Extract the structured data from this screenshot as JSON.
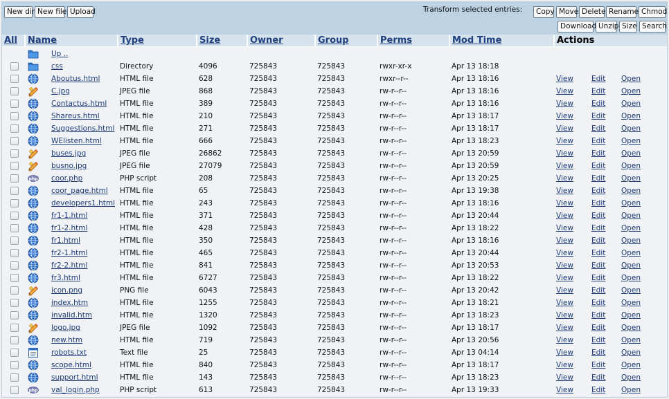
{
  "toolbar": {
    "buttons_left": [
      "New dir",
      "New file",
      "Upload"
    ],
    "transform_label": "Transform selected entries:",
    "buttons_right_row1": [
      "Copy",
      "Move",
      "Delete",
      "Rename",
      "Chmod"
    ],
    "buttons_right_row2": [
      "Download",
      "Unzip",
      "Size",
      "Search"
    ]
  },
  "columns": {
    "all": "All",
    "name": "Name",
    "type": "Type",
    "size": "Size",
    "owner": "Owner",
    "group": "Group",
    "perms": "Perms",
    "mtime": "Mod Time",
    "actions": "Actions"
  },
  "up_link": "Up ..",
  "action_labels": {
    "view": "View",
    "edit": "Edit",
    "open": "Open"
  },
  "rows": [
    {
      "name": "css",
      "type": "Directory",
      "size": "4096",
      "owner": "725843",
      "group": "725843",
      "perms": "rwxr-xr-x",
      "mtime": "Apr 13 18:18",
      "icon": "folder-icon",
      "actions": false
    },
    {
      "name": "Aboutus.html",
      "type": "HTML file",
      "size": "628",
      "owner": "725843",
      "group": "725843",
      "perms": "rwxr--r--",
      "mtime": "Apr 13 18:16",
      "icon": "html-file-icon",
      "actions": true
    },
    {
      "name": "C.jpg",
      "type": "JPEG file",
      "size": "868",
      "owner": "725843",
      "group": "725843",
      "perms": "rw-r--r--",
      "mtime": "Apr 13 18:16",
      "icon": "image-file-icon",
      "actions": true
    },
    {
      "name": "Contactus.html",
      "type": "HTML file",
      "size": "389",
      "owner": "725843",
      "group": "725843",
      "perms": "rw-r--r--",
      "mtime": "Apr 13 18:16",
      "icon": "html-file-icon",
      "actions": true
    },
    {
      "name": "Shareus.html",
      "type": "HTML file",
      "size": "210",
      "owner": "725843",
      "group": "725843",
      "perms": "rw-r--r--",
      "mtime": "Apr 13 18:17",
      "icon": "html-file-icon",
      "actions": true
    },
    {
      "name": "Suggestions.html",
      "type": "HTML file",
      "size": "271",
      "owner": "725843",
      "group": "725843",
      "perms": "rw-r--r--",
      "mtime": "Apr 13 18:17",
      "icon": "html-file-icon",
      "actions": true
    },
    {
      "name": "WElisten.html",
      "type": "HTML file",
      "size": "666",
      "owner": "725843",
      "group": "725843",
      "perms": "rw-r--r--",
      "mtime": "Apr 13 18:23",
      "icon": "html-file-icon",
      "actions": true
    },
    {
      "name": "buses.jpg",
      "type": "JPEG file",
      "size": "26862",
      "owner": "725843",
      "group": "725843",
      "perms": "rw-r--r--",
      "mtime": "Apr 13 20:59",
      "icon": "image-file-icon",
      "actions": true
    },
    {
      "name": "busno.jpg",
      "type": "JPEG file",
      "size": "27079",
      "owner": "725843",
      "group": "725843",
      "perms": "rw-r--r--",
      "mtime": "Apr 13 20:59",
      "icon": "image-file-icon",
      "actions": true
    },
    {
      "name": "coor.php",
      "type": "PHP script",
      "size": "208",
      "owner": "725843",
      "group": "725843",
      "perms": "rw-r--r--",
      "mtime": "Apr 13 20:25",
      "icon": "php-file-icon",
      "actions": true
    },
    {
      "name": "coor_page.html",
      "type": "HTML file",
      "size": "65",
      "owner": "725843",
      "group": "725843",
      "perms": "rw-r--r--",
      "mtime": "Apr 13 19:38",
      "icon": "html-file-icon",
      "actions": true
    },
    {
      "name": "developers1.html",
      "type": "HTML file",
      "size": "243",
      "owner": "725843",
      "group": "725843",
      "perms": "rw-r--r--",
      "mtime": "Apr 13 18:16",
      "icon": "html-file-icon",
      "actions": true
    },
    {
      "name": "fr1-1.html",
      "type": "HTML file",
      "size": "371",
      "owner": "725843",
      "group": "725843",
      "perms": "rw-r--r--",
      "mtime": "Apr 13 20:44",
      "icon": "html-file-icon",
      "actions": true
    },
    {
      "name": "fr1-2.html",
      "type": "HTML file",
      "size": "428",
      "owner": "725843",
      "group": "725843",
      "perms": "rw-r--r--",
      "mtime": "Apr 13 18:22",
      "icon": "html-file-icon",
      "actions": true
    },
    {
      "name": "fr1.html",
      "type": "HTML file",
      "size": "350",
      "owner": "725843",
      "group": "725843",
      "perms": "rw-r--r--",
      "mtime": "Apr 13 18:16",
      "icon": "html-file-icon",
      "actions": true
    },
    {
      "name": "fr2-1.html",
      "type": "HTML file",
      "size": "465",
      "owner": "725843",
      "group": "725843",
      "perms": "rw-r--r--",
      "mtime": "Apr 13 20:44",
      "icon": "html-file-icon",
      "actions": true
    },
    {
      "name": "fr2-2.html",
      "type": "HTML file",
      "size": "841",
      "owner": "725843",
      "group": "725843",
      "perms": "rw-r--r--",
      "mtime": "Apr 13 20:53",
      "icon": "html-file-icon",
      "actions": true
    },
    {
      "name": "fr3.html",
      "type": "HTML file",
      "size": "6727",
      "owner": "725843",
      "group": "725843",
      "perms": "rw-r--r--",
      "mtime": "Apr 13 18:22",
      "icon": "html-file-icon",
      "actions": true
    },
    {
      "name": "icon.png",
      "type": "PNG file",
      "size": "6043",
      "owner": "725843",
      "group": "725843",
      "perms": "rw-r--r--",
      "mtime": "Apr 13 20:42",
      "icon": "image-file-icon",
      "actions": true
    },
    {
      "name": "index.htm",
      "type": "HTML file",
      "size": "1255",
      "owner": "725843",
      "group": "725843",
      "perms": "rw-r--r--",
      "mtime": "Apr 13 18:21",
      "icon": "html-file-icon",
      "actions": true
    },
    {
      "name": "invalid.htm",
      "type": "HTML file",
      "size": "1320",
      "owner": "725843",
      "group": "725843",
      "perms": "rw-r--r--",
      "mtime": "Apr 13 18:23",
      "icon": "html-file-icon",
      "actions": true
    },
    {
      "name": "logo.jpg",
      "type": "JPEG file",
      "size": "1092",
      "owner": "725843",
      "group": "725843",
      "perms": "rw-r--r--",
      "mtime": "Apr 13 18:17",
      "icon": "image-file-icon",
      "actions": true
    },
    {
      "name": "new.htm",
      "type": "HTML file",
      "size": "719",
      "owner": "725843",
      "group": "725843",
      "perms": "rw-r--r--",
      "mtime": "Apr 13 20:56",
      "icon": "html-file-icon",
      "actions": true
    },
    {
      "name": "robots.txt",
      "type": "Text file",
      "size": "25",
      "owner": "725843",
      "group": "725843",
      "perms": "rw-r--r--",
      "mtime": "Apr 13 04:14",
      "icon": "text-file-icon",
      "actions": true
    },
    {
      "name": "scope.html",
      "type": "HTML file",
      "size": "840",
      "owner": "725843",
      "group": "725843",
      "perms": "rw-r--r--",
      "mtime": "Apr 13 18:17",
      "icon": "html-file-icon",
      "actions": true
    },
    {
      "name": "support.html",
      "type": "HTML file",
      "size": "143",
      "owner": "725843",
      "group": "725843",
      "perms": "rw-r--r--",
      "mtime": "Apr 13 18:23",
      "icon": "html-file-icon",
      "actions": true
    },
    {
      "name": "val_login.php",
      "type": "PHP script",
      "size": "613",
      "owner": "725843",
      "group": "725843",
      "perms": "rw-r--r--",
      "mtime": "Apr 13 19:33",
      "icon": "php-file-icon",
      "actions": true
    }
  ],
  "colors": {
    "toolbar_bg": "#bdd3e3",
    "header_bg": "#d6e3ec",
    "link": "#1b3a78",
    "page_bg": "#f0f2f5"
  }
}
